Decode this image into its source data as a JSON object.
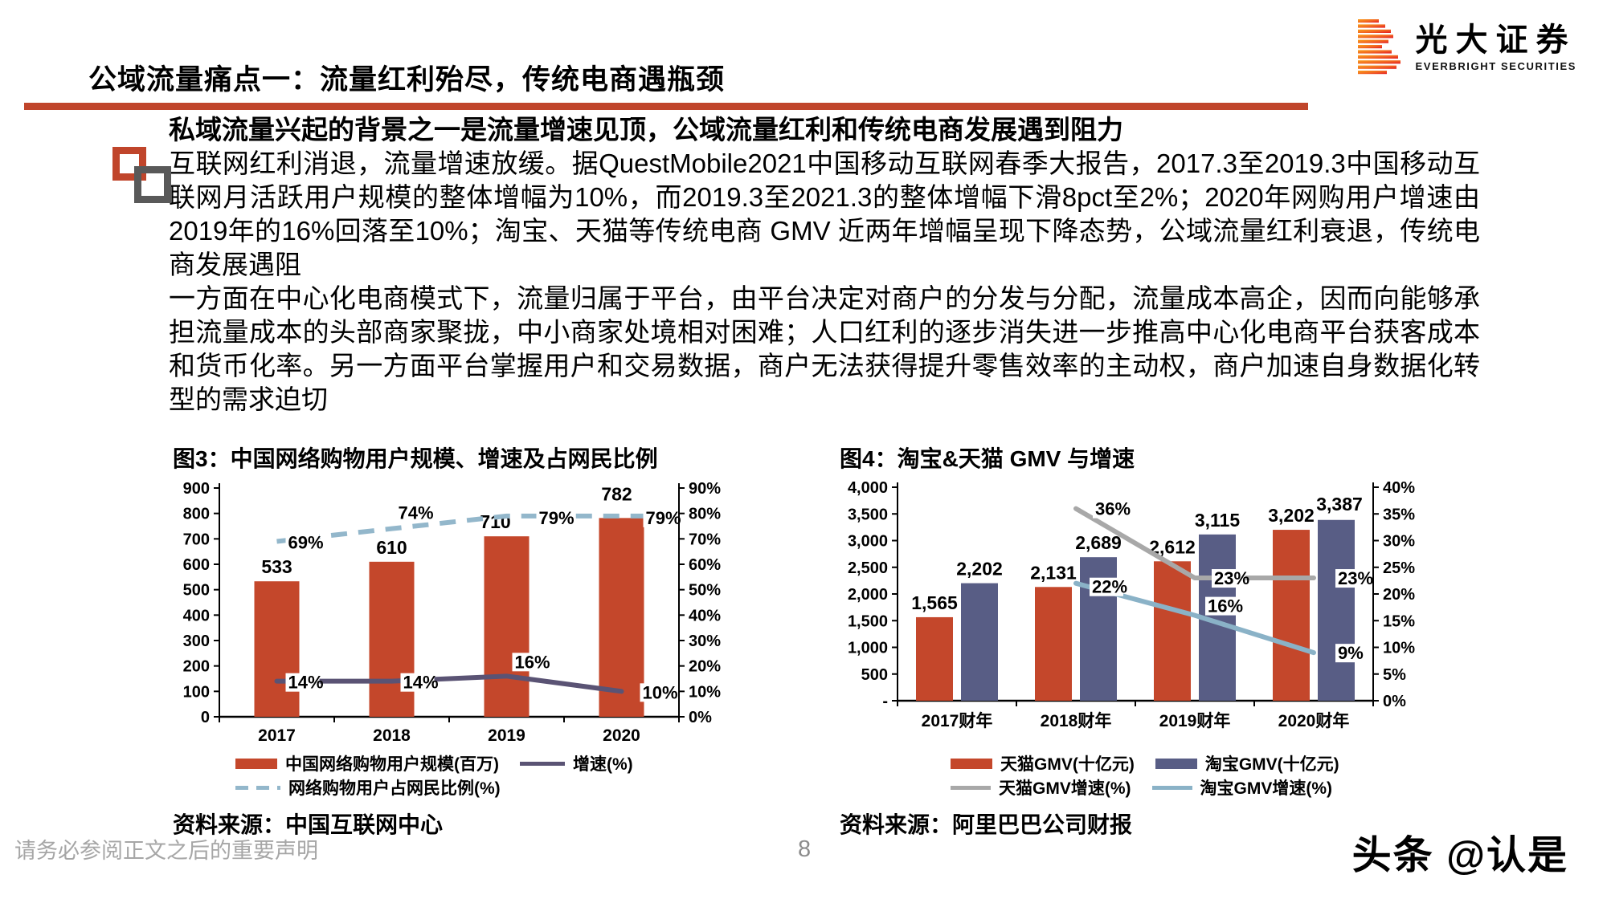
{
  "header": {
    "title": "公域流量痛点一：流量红利殆尽，传统电商遇瓶颈",
    "logo_cn": "光大证券",
    "logo_en": "EVERBRIGHT SECURITIES",
    "accent_color": "#C0452B"
  },
  "body": {
    "lead": "私域流量兴起的背景之一是流量增速见顶，公域流量红利和传统电商发展遇到阻力",
    "para1": "互联网红利消退，流量增速放缓。据QuestMobile2021中国移动互联网春季大报告，2017.3至2019.3中国移动互联网月活跃用户规模的整体增幅为10%，而2019.3至2021.3的整体增幅下滑8pct至2%；2020年网购用户增速由2019年的16%回落至10%；淘宝、天猫等传统电商 GMV 近两年增幅呈现下降态势，公域流量红利衰退，传统电商发展遇阻",
    "para2": "一方面在中心化电商模式下，流量归属于平台，由平台决定对商户的分发与分配，流量成本高企，因而向能够承担流量成本的头部商家聚拢，中小商家处境相对困难；人口红利的逐步消失进一步推高中心化电商平台获客成本和货币化率。另一方面平台掌握用户和交易数据，商户无法获得提升零售效率的主动权，商户加速自身数据化转型的需求迫切"
  },
  "chart_data": [
    {
      "type": "bar",
      "title": "图3：中国网络购物用户规模、增速及占网民比例",
      "categories": [
        "2017",
        "2018",
        "2019",
        "2020"
      ],
      "series": [
        {
          "name": "中国网络购物用户规模(百万)",
          "kind": "bar",
          "axis": "left",
          "color": "#C4472B",
          "values": [
            533,
            610,
            710,
            782
          ],
          "labels": [
            "533",
            "610",
            "710",
            "782"
          ]
        },
        {
          "name": "增速(%)",
          "kind": "line",
          "axis": "right",
          "color": "#5A5374",
          "values": [
            14,
            14,
            16,
            10
          ],
          "labels": [
            "14%",
            "14%",
            "16%",
            "10%"
          ]
        },
        {
          "name": "网络购物用户占网民比例(%)",
          "kind": "line",
          "dashed": true,
          "axis": "right",
          "color": "#93B7CB",
          "values": [
            69,
            74,
            79,
            79
          ],
          "labels": [
            "69%",
            "74%",
            "79%",
            "79%"
          ]
        }
      ],
      "left_axis": {
        "min": 0,
        "max": 900,
        "tick_labels": [
          "0",
          "100",
          "200",
          "300",
          "400",
          "500",
          "600",
          "700",
          "800",
          "900"
        ]
      },
      "right_axis": {
        "min": 0,
        "max": 90,
        "tick_labels": [
          "0%",
          "10%",
          "20%",
          "30%",
          "40%",
          "50%",
          "60%",
          "70%",
          "80%",
          "90%"
        ]
      },
      "legend_position": "bottom",
      "grid": false,
      "source": "资料来源：中国互联网中心"
    },
    {
      "type": "bar",
      "title": "图4：淘宝&天猫 GMV 与增速",
      "categories": [
        "2017财年",
        "2018财年",
        "2019财年",
        "2020财年"
      ],
      "series": [
        {
          "name": "天猫GMV(十亿元)",
          "kind": "bar",
          "axis": "left",
          "color": "#C4472B",
          "values": [
            1565,
            2131,
            2612,
            3202
          ],
          "labels": [
            "1,565",
            "2,131",
            "2,612",
            "3,202"
          ]
        },
        {
          "name": "淘宝GMV(十亿元)",
          "kind": "bar",
          "axis": "left",
          "color": "#585D85",
          "values": [
            2202,
            2689,
            3115,
            3387
          ],
          "labels": [
            "2,202",
            "2,689",
            "3,115",
            "3,387"
          ]
        },
        {
          "name": "天猫GMV增速(%)",
          "kind": "line",
          "axis": "right",
          "color": "#A8A8A8",
          "values": [
            null,
            36,
            23,
            23
          ],
          "labels": [
            "",
            "36%",
            "23%",
            "23%"
          ]
        },
        {
          "name": "淘宝GMV增速(%)",
          "kind": "line",
          "axis": "right",
          "color": "#8AB2C7",
          "values": [
            null,
            22,
            16,
            9
          ],
          "labels": [
            "",
            "22%",
            "16%",
            "9%"
          ]
        }
      ],
      "left_axis": {
        "min": 0,
        "max": 4000,
        "tick_labels": [
          "-",
          "500",
          "1,000",
          "1,500",
          "2,000",
          "2,500",
          "3,000",
          "3,500",
          "4,000"
        ]
      },
      "right_axis": {
        "min": 0,
        "max": 40,
        "tick_labels": [
          "0%",
          "5%",
          "10%",
          "15%",
          "20%",
          "25%",
          "30%",
          "35%",
          "40%"
        ]
      },
      "legend_position": "bottom",
      "grid": false,
      "source": "资料来源：阿里巴巴公司财报"
    }
  ],
  "footer": {
    "disclaimer": "请务必参阅正文之后的重要声明",
    "page": "8",
    "watermark": "头条 @认是"
  }
}
